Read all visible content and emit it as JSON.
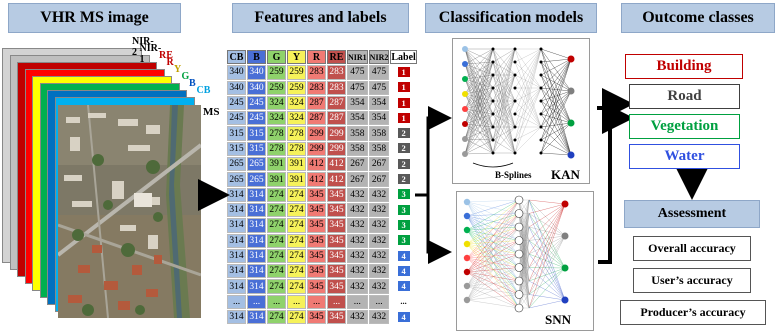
{
  "headers": {
    "image": "VHR MS image",
    "features": "Features and labels",
    "models": "Classification models",
    "outcomes": "Outcome classes"
  },
  "bands": [
    {
      "label": "NIR-2",
      "color": "#d3d3d3"
    },
    {
      "label": "NIR-1",
      "color": "#bfbfbf"
    },
    {
      "label": "RE",
      "color": "#c00000"
    },
    {
      "label": "R",
      "color": "#ff0000"
    },
    {
      "label": "Y",
      "color": "#ffff00"
    },
    {
      "label": "G",
      "color": "#00b050"
    },
    {
      "label": "B",
      "color": "#0070c0"
    },
    {
      "label": "CB",
      "color": "#00b0f0"
    }
  ],
  "ms_label": "MS",
  "table": {
    "columns": [
      {
        "label": "CB",
        "color": "#a4bfe3"
      },
      {
        "label": "B",
        "color": "#4a6fd6"
      },
      {
        "label": "G",
        "color": "#8fd26b"
      },
      {
        "label": "Y",
        "color": "#f6f25a"
      },
      {
        "label": "R",
        "color": "#f07a74"
      },
      {
        "label": "RE",
        "color": "#c0504d"
      },
      {
        "label": "NIR1",
        "color": "#b3b3b3"
      },
      {
        "label": "NIR2",
        "color": "#b3b3b3"
      },
      {
        "label": "Label",
        "color": "#ffffff"
      }
    ],
    "rows": [
      {
        "values": [
          "340",
          "340",
          "259",
          "259",
          "283",
          "283",
          "475",
          "475"
        ],
        "label": "1"
      },
      {
        "values": [
          "340",
          "340",
          "259",
          "259",
          "283",
          "283",
          "475",
          "475"
        ],
        "label": "1"
      },
      {
        "values": [
          "245",
          "245",
          "324",
          "324",
          "287",
          "287",
          "354",
          "354"
        ],
        "label": "1"
      },
      {
        "values": [
          "245",
          "245",
          "324",
          "324",
          "287",
          "287",
          "354",
          "354"
        ],
        "label": "1"
      },
      {
        "values": [
          "315",
          "315",
          "278",
          "278",
          "299",
          "299",
          "358",
          "358"
        ],
        "label": "2"
      },
      {
        "values": [
          "315",
          "315",
          "278",
          "278",
          "299",
          "299",
          "358",
          "358"
        ],
        "label": "2"
      },
      {
        "values": [
          "265",
          "265",
          "391",
          "391",
          "412",
          "412",
          "267",
          "267"
        ],
        "label": "2"
      },
      {
        "values": [
          "265",
          "265",
          "391",
          "391",
          "412",
          "412",
          "267",
          "267"
        ],
        "label": "2"
      },
      {
        "values": [
          "314",
          "314",
          "274",
          "274",
          "345",
          "345",
          "432",
          "432"
        ],
        "label": "3"
      },
      {
        "values": [
          "314",
          "314",
          "274",
          "274",
          "345",
          "345",
          "432",
          "432"
        ],
        "label": "3"
      },
      {
        "values": [
          "314",
          "314",
          "274",
          "274",
          "345",
          "345",
          "432",
          "432"
        ],
        "label": "3"
      },
      {
        "values": [
          "314",
          "314",
          "274",
          "274",
          "345",
          "345",
          "432",
          "432"
        ],
        "label": "3"
      },
      {
        "values": [
          "314",
          "314",
          "274",
          "274",
          "345",
          "345",
          "432",
          "432"
        ],
        "label": "4"
      },
      {
        "values": [
          "314",
          "314",
          "274",
          "274",
          "345",
          "345",
          "432",
          "432"
        ],
        "label": "4"
      },
      {
        "values": [
          "314",
          "314",
          "274",
          "274",
          "345",
          "345",
          "432",
          "432"
        ],
        "label": "4"
      },
      {
        "values": [
          "...",
          "...",
          "...",
          "...",
          "...",
          "...",
          "...",
          "..."
        ],
        "label": "..."
      },
      {
        "values": [
          "314",
          "314",
          "274",
          "274",
          "345",
          "345",
          "432",
          "432"
        ],
        "label": "4"
      }
    ],
    "label_colors": {
      "1": "#c00000",
      "2": "#595959",
      "3": "#00a040",
      "4": "#3a6fd8",
      "...": "#ffffff"
    }
  },
  "models": {
    "kan_label": "KAN",
    "bsplines_label": "B-Splines",
    "snn_label": "SNN"
  },
  "classes": [
    {
      "label": "Building",
      "color": "#c00000"
    },
    {
      "label": "Road",
      "color": "#404040"
    },
    {
      "label": "Vegetation",
      "color": "#00a040"
    },
    {
      "label": "Water",
      "color": "#3050e0"
    }
  ],
  "assessment": {
    "title": "Assessment",
    "items": [
      "Overall accuracy",
      "User’s accuracy",
      "Producer’s accuracy"
    ]
  }
}
